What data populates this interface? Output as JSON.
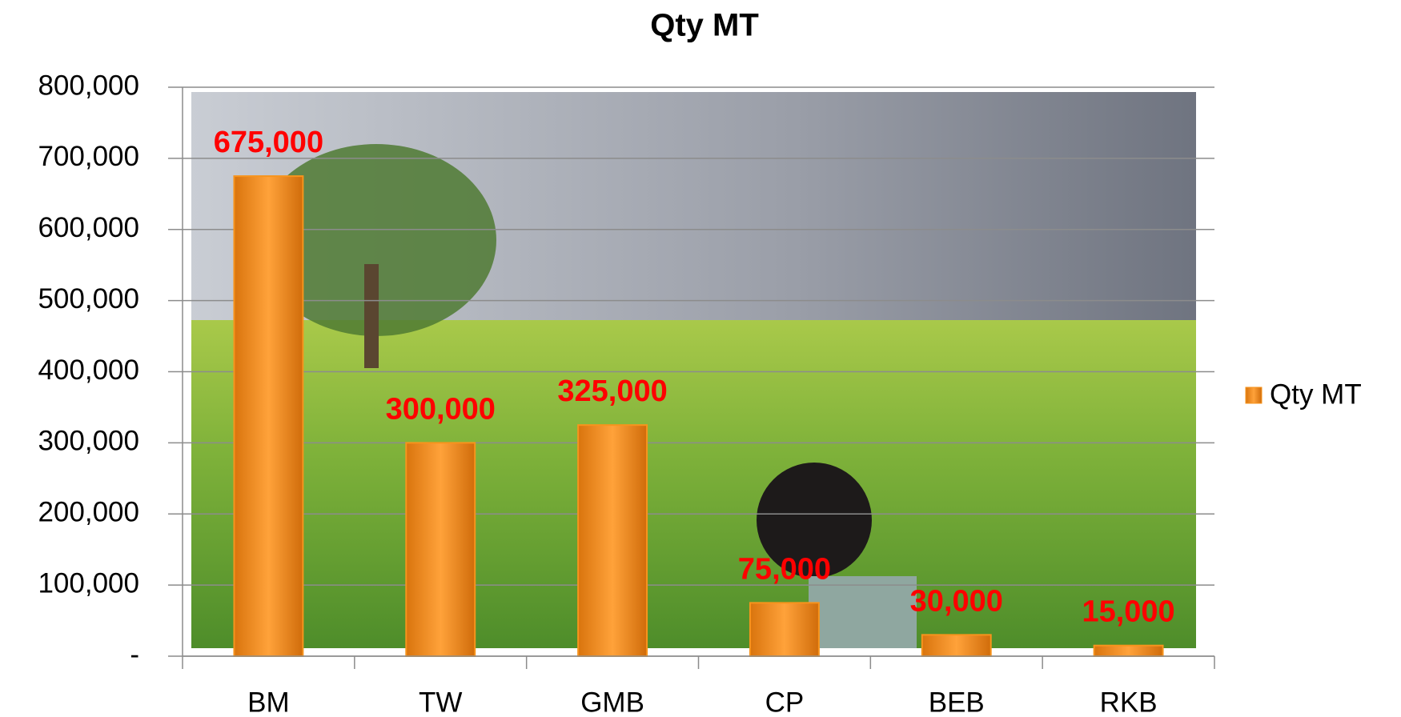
{
  "chart_data": {
    "type": "bar",
    "title": "Qty MT",
    "categories": [
      "BM",
      "TW",
      "GMB",
      "CP",
      "BEB",
      "RKB"
    ],
    "series": [
      {
        "name": "Qty MT",
        "color": "#f7941d",
        "values": [
          675000,
          300000,
          325000,
          75000,
          30000,
          15000
        ],
        "value_labels": [
          "675,000",
          "300,000",
          "325,000",
          "75,000",
          "30,000",
          "15,000"
        ]
      }
    ],
    "value_label_color": "#ff0000",
    "ylim": [
      0,
      800000
    ],
    "yticks": [
      {
        "value": 0,
        "label": "-"
      },
      {
        "value": 100000,
        "label": "100,000"
      },
      {
        "value": 200000,
        "label": "200,000"
      },
      {
        "value": 300000,
        "label": "300,000"
      },
      {
        "value": 400000,
        "label": "400,000"
      },
      {
        "value": 500000,
        "label": "500,000"
      },
      {
        "value": 600000,
        "label": "600,000"
      },
      {
        "value": 700000,
        "label": "700,000"
      },
      {
        "value": 800000,
        "label": "800,000"
      }
    ],
    "grid": true,
    "legend": "right"
  }
}
